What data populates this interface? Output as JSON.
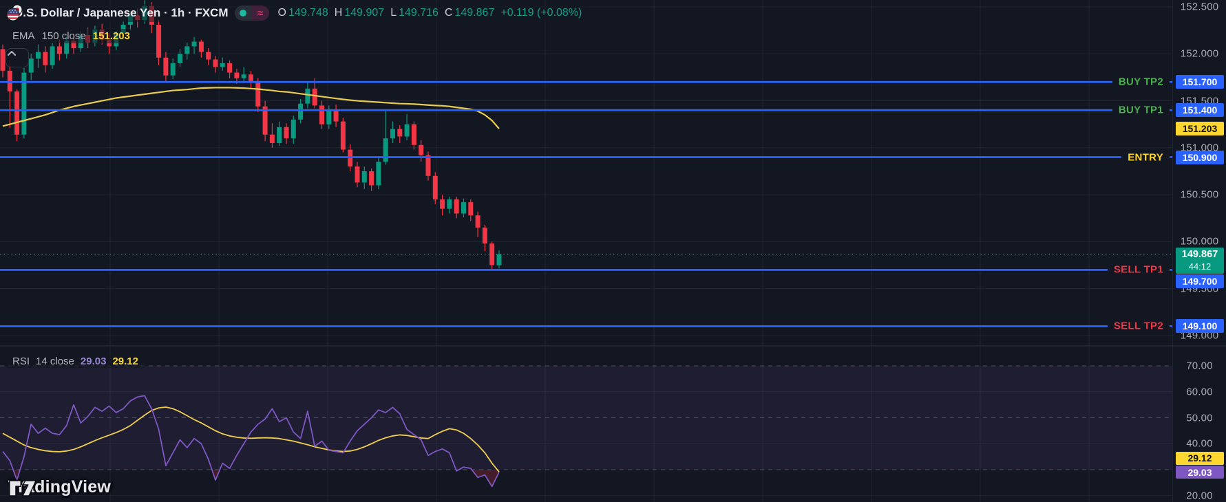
{
  "header": {
    "title": "U.S. Dollar / Japanese Yen · 1h · FXCM",
    "ohlc": {
      "o_label": "O",
      "o_value": "149.748",
      "h_label": "H",
      "h_value": "149.907",
      "l_label": "L",
      "l_value": "149.716",
      "c_label": "C",
      "c_value": "149.867",
      "change": "+0.119 (+0.08%)"
    }
  },
  "ema_legend": {
    "name": "EMA",
    "params": "150 close",
    "value": "151.203"
  },
  "rsi_legend": {
    "name": "RSI",
    "params": "14 close",
    "rsi_value": "29.03",
    "ma_value": "29.12"
  },
  "current_price": {
    "value": "149.867",
    "countdown": "44:12"
  },
  "axis_labels": {
    "ema_value": "151.203",
    "rsi_value": "29.03",
    "rsi_ma_value": "29.12"
  },
  "logo": {
    "text": "TradingView"
  },
  "colors": {
    "background": "#131722",
    "grid": "rgba(42,46,57,0.65)",
    "pane_separator": "#242836",
    "up": "#089981",
    "down": "#f23645",
    "level_blue": "#2962ff",
    "ema_yellow": "#e9cc4f",
    "rsi_purple": "#7e57c2",
    "rsi_ma_yellow": "#f0ce4d",
    "rsi_band_fill": "rgba(126,87,194,0.10)",
    "rsi_oversold_fill": "rgba(242,54,69,0.22)",
    "current_line": "#1d9a87",
    "current_label_bg": "#089981",
    "yellow_label_bg": "#fed630",
    "buy_text": "#4caf50",
    "sell_text": "#f23645",
    "entry_text": "#ffd62a",
    "axis_text": "#a8adb8"
  },
  "chart_data": {
    "type": "candlestick",
    "symbol": "USDJPY",
    "timeframe": "1h",
    "price_ticks": [
      152.5,
      152.0,
      151.5,
      151.0,
      150.5,
      150.0,
      149.5,
      149.0
    ],
    "rsi_ticks": [
      70,
      60,
      50,
      40,
      20
    ],
    "rsi_dashed_levels": [
      70,
      50,
      30
    ],
    "rsi_solid_levels": [
      60,
      40,
      20
    ],
    "rsi_band": [
      30,
      70
    ],
    "current_price": 149.867,
    "levels": [
      {
        "label": "BUY TP2",
        "price": 151.7,
        "role": "buy"
      },
      {
        "label": "BUY TP1",
        "price": 151.4,
        "role": "buy"
      },
      {
        "label": "ENTRY",
        "price": 150.9,
        "role": "entry"
      },
      {
        "label": "SELL TP1",
        "price": 149.7,
        "role": "sell"
      },
      {
        "label": "SELL TP2",
        "price": 149.1,
        "role": "sell"
      }
    ],
    "candles": [
      [
        152.05,
        152.1,
        151.75,
        151.82
      ],
      [
        151.82,
        151.92,
        151.21,
        151.6
      ],
      [
        151.6,
        151.62,
        151.07,
        151.14
      ],
      [
        151.14,
        151.85,
        151.1,
        151.8
      ],
      [
        151.8,
        152.0,
        151.72,
        151.95
      ],
      [
        151.95,
        152.1,
        151.85,
        152.02
      ],
      [
        152.02,
        152.08,
        151.8,
        151.88
      ],
      [
        151.88,
        152.12,
        151.84,
        152.08
      ],
      [
        152.08,
        152.15,
        151.93,
        152.0
      ],
      [
        152.0,
        152.18,
        151.95,
        152.14
      ],
      [
        152.14,
        152.2,
        152.0,
        152.06
      ],
      [
        152.06,
        152.24,
        152.02,
        152.2
      ],
      [
        152.2,
        152.28,
        152.06,
        152.12
      ],
      [
        152.12,
        152.3,
        152.08,
        152.26
      ],
      [
        152.26,
        152.32,
        152.1,
        152.15
      ],
      [
        152.15,
        152.22,
        152.0,
        152.08
      ],
      [
        152.08,
        152.25,
        152.04,
        152.22
      ],
      [
        152.22,
        152.35,
        152.15,
        152.31
      ],
      [
        152.31,
        152.45,
        152.25,
        152.41
      ],
      [
        152.41,
        152.48,
        152.28,
        152.36
      ],
      [
        152.36,
        152.57,
        152.32,
        152.51
      ],
      [
        152.51,
        152.55,
        152.22,
        152.31
      ],
      [
        152.31,
        152.36,
        151.88,
        151.96
      ],
      [
        151.96,
        152.02,
        151.7,
        151.77
      ],
      [
        151.77,
        151.95,
        151.73,
        151.9
      ],
      [
        151.9,
        152.05,
        151.86,
        152.0
      ],
      [
        152.0,
        152.12,
        151.94,
        152.08
      ],
      [
        152.08,
        152.18,
        152.0,
        152.13
      ],
      [
        152.13,
        152.15,
        151.96,
        152.02
      ],
      [
        152.02,
        152.06,
        151.88,
        151.94
      ],
      [
        151.94,
        151.98,
        151.8,
        151.86
      ],
      [
        151.86,
        151.96,
        151.82,
        151.9
      ],
      [
        151.9,
        151.93,
        151.74,
        151.8
      ],
      [
        151.8,
        151.84,
        151.68,
        151.74
      ],
      [
        151.74,
        151.86,
        151.7,
        151.78
      ],
      [
        151.78,
        151.82,
        151.64,
        151.71
      ],
      [
        151.71,
        151.74,
        151.38,
        151.44
      ],
      [
        151.44,
        151.5,
        151.07,
        151.14
      ],
      [
        151.14,
        151.26,
        151.0,
        151.05
      ],
      [
        151.05,
        151.28,
        151.02,
        151.22
      ],
      [
        151.22,
        151.26,
        151.04,
        151.1
      ],
      [
        151.1,
        151.34,
        151.04,
        151.3
      ],
      [
        151.3,
        151.52,
        151.26,
        151.47
      ],
      [
        151.47,
        151.7,
        151.42,
        151.63
      ],
      [
        151.63,
        151.74,
        151.42,
        151.45
      ],
      [
        151.45,
        151.5,
        151.2,
        151.25
      ],
      [
        151.25,
        151.45,
        151.2,
        151.4
      ],
      [
        151.4,
        151.46,
        151.22,
        151.28
      ],
      [
        151.28,
        151.32,
        150.95,
        150.98
      ],
      [
        150.98,
        151.04,
        150.75,
        150.8
      ],
      [
        150.8,
        150.85,
        150.58,
        150.63
      ],
      [
        150.63,
        150.8,
        150.56,
        150.75
      ],
      [
        150.75,
        150.78,
        150.54,
        150.6
      ],
      [
        150.6,
        150.9,
        150.56,
        150.85
      ],
      [
        150.85,
        151.4,
        150.82,
        151.1
      ],
      [
        151.1,
        151.28,
        151.05,
        151.2
      ],
      [
        151.2,
        151.24,
        151.05,
        151.12
      ],
      [
        151.12,
        151.36,
        151.08,
        151.25
      ],
      [
        151.25,
        151.28,
        150.98,
        151.03
      ],
      [
        151.03,
        151.08,
        150.85,
        150.92
      ],
      [
        150.92,
        150.96,
        150.65,
        150.7
      ],
      [
        150.7,
        150.74,
        150.4,
        150.45
      ],
      [
        150.45,
        150.5,
        150.28,
        150.35
      ],
      [
        150.35,
        150.48,
        150.3,
        150.45
      ],
      [
        150.45,
        150.48,
        150.25,
        150.3
      ],
      [
        150.3,
        150.46,
        150.26,
        150.42
      ],
      [
        150.42,
        150.45,
        150.22,
        150.28
      ],
      [
        150.28,
        150.32,
        150.05,
        150.15
      ],
      [
        150.15,
        150.18,
        149.9,
        149.98
      ],
      [
        149.98,
        150.0,
        149.7,
        149.75
      ],
      [
        149.748,
        149.907,
        149.716,
        149.867
      ]
    ],
    "ema_150": [
      151.23,
      151.25,
      151.27,
      151.29,
      151.31,
      151.33,
      151.35,
      151.375,
      151.4,
      151.42,
      151.44,
      151.455,
      151.47,
      151.485,
      151.5,
      151.515,
      151.53,
      151.54,
      151.55,
      151.56,
      151.57,
      151.58,
      151.59,
      151.6,
      151.61,
      151.615,
      151.62,
      151.628,
      151.635,
      151.638,
      151.64,
      151.64,
      151.64,
      151.638,
      151.635,
      151.63,
      151.625,
      151.617,
      151.61,
      151.6,
      151.595,
      151.585,
      151.575,
      151.565,
      151.555,
      151.545,
      151.535,
      151.525,
      151.515,
      151.507,
      151.5,
      151.495,
      151.49,
      151.485,
      151.48,
      151.475,
      151.47,
      151.468,
      151.465,
      151.46,
      151.455,
      151.45,
      151.447,
      151.44,
      151.43,
      151.42,
      151.41,
      151.39,
      151.35,
      151.29,
      151.203
    ],
    "rsi_14": [
      37,
      33.5,
      26,
      35,
      47.5,
      44,
      46,
      44,
      43.5,
      47,
      55,
      48,
      50.5,
      54,
      52.5,
      54.5,
      52,
      53.5,
      56.5,
      58,
      58.5,
      53.5,
      45.5,
      31.5,
      36.5,
      41.5,
      38.5,
      42,
      40,
      34,
      26,
      32.5,
      30.5,
      35.5,
      40,
      44.5,
      47.5,
      49.5,
      53.5,
      48.5,
      50,
      44.5,
      42,
      52.5,
      39,
      41,
      37.5,
      37,
      36.5,
      41,
      45,
      47.5,
      50,
      53,
      52,
      54,
      51.5,
      45.5,
      43.5,
      41.5,
      35.5,
      37,
      38,
      36.5,
      29.5,
      31,
      30.5,
      27,
      28,
      23.5,
      29.03
    ],
    "rsi_ma_14": [
      44,
      42.5,
      41,
      39.5,
      38.5,
      37.8,
      37.3,
      37,
      36.9,
      37.2,
      37.8,
      38.8,
      40,
      41.2,
      42.3,
      43.3,
      44.3,
      45.5,
      47,
      49,
      51,
      52.8,
      53.8,
      54.1,
      53.5,
      52.3,
      50.8,
      49.3,
      48,
      46.5,
      45,
      43.8,
      43,
      42.5,
      42.2,
      42.1,
      42.2,
      42.3,
      42.2,
      42,
      41.5,
      41,
      40.3,
      39.6,
      38.8,
      38.2,
      37.6,
      37.2,
      37,
      37.2,
      37.8,
      38.8,
      40,
      41.3,
      42.3,
      43,
      43.4,
      43.2,
      42.7,
      42.2,
      42,
      43.5,
      44.8,
      45.8,
      45.3,
      44,
      42,
      39.5,
      36.5,
      32.5,
      29.12
    ]
  }
}
